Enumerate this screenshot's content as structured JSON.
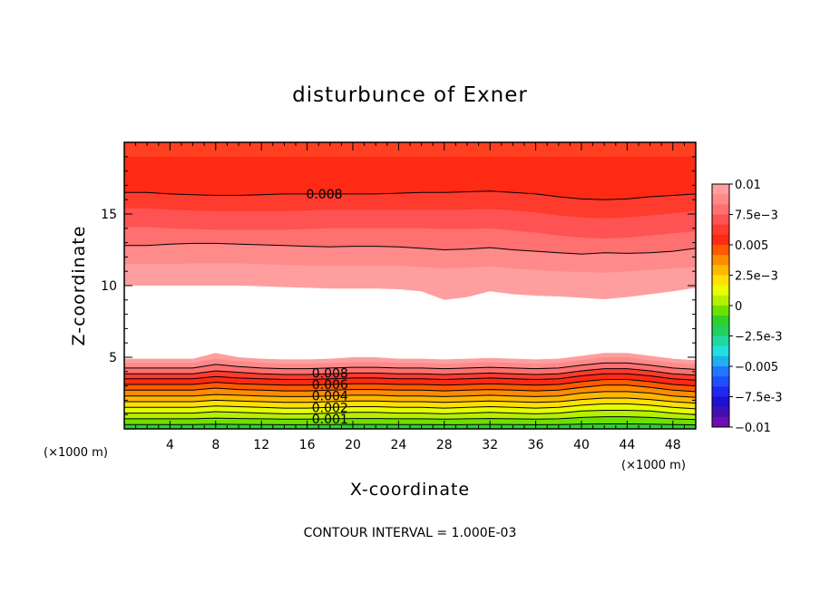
{
  "chart_data": {
    "type": "heatmap",
    "subtype": "filled-contour",
    "title": "disturbunce of Exner",
    "xlabel": "X-coordinate",
    "ylabel": "Z-coordinate",
    "x_unit": "(×1000 m)",
    "y_unit": "(×1000 m)",
    "xlim": [
      0,
      50
    ],
    "ylim": [
      0,
      20
    ],
    "x_ticks": [
      4,
      8,
      12,
      16,
      20,
      24,
      28,
      32,
      36,
      40,
      44,
      48
    ],
    "y_ticks": [
      5,
      10,
      15
    ],
    "footer": "CONTOUR INTERVAL = 1.000E-03",
    "contour_interval": 0.001,
    "colorbar": {
      "levels": [
        0.01,
        0.0075,
        0.005,
        0.0025,
        0,
        -0.0025,
        -0.005,
        -0.0075,
        -0.01
      ],
      "labels": [
        "0.01",
        "7.5e-3",
        "0.005",
        "2.5e-3",
        "0",
        "-2.5e-3",
        "-0.005",
        "-7.5e-3",
        "-0.01"
      ],
      "colors": [
        "#ff9e9e",
        "#ff8a8a",
        "#ff7070",
        "#ff5252",
        "#ff3b2e",
        "#ff2a14",
        "#ff5a00",
        "#ff8c00",
        "#ffb800",
        "#ffe000",
        "#e8ff00",
        "#b4f000",
        "#6ee000",
        "#2ed12e",
        "#20d060",
        "#20d8a0",
        "#20e0e0",
        "#20b0f0",
        "#1e78ff",
        "#1e50ff",
        "#1e28f0",
        "#2010d0",
        "#4010b0",
        "#6a10b0"
      ]
    },
    "layers_x": [
      0,
      2,
      4,
      6,
      8,
      10,
      12,
      14,
      16,
      18,
      20,
      22,
      24,
      26,
      28,
      30,
      32,
      34,
      36,
      38,
      40,
      42,
      44,
      46,
      48,
      50
    ],
    "layers": [
      {
        "color": "#ff4020",
        "z": [
          20,
          20,
          20,
          20,
          20,
          20,
          20,
          20,
          20,
          20,
          20,
          20,
          20,
          20,
          20,
          20,
          20,
          20,
          20,
          20,
          20,
          20,
          20,
          20,
          20,
          20
        ]
      },
      {
        "color": "#ff2a14",
        "z": [
          19.0,
          19.0,
          19.0,
          19.0,
          19.0,
          19.0,
          19.0,
          19.0,
          19.0,
          19.0,
          19.0,
          19.0,
          19.0,
          19.0,
          19.0,
          19.0,
          19.0,
          19.0,
          19.0,
          19.0,
          19.0,
          19.0,
          19.0,
          19.0,
          19.0,
          19.0
        ]
      },
      {
        "color": "#ff3b2e",
        "z": [
          16.5,
          16.5,
          16.4,
          16.35,
          16.3,
          16.3,
          16.35,
          16.4,
          16.4,
          16.4,
          16.4,
          16.4,
          16.45,
          16.5,
          16.5,
          16.55,
          16.6,
          16.5,
          16.4,
          16.2,
          16.05,
          16.0,
          16.05,
          16.2,
          16.3,
          16.4
        ]
      },
      {
        "color": "#ff5252",
        "z": [
          15.4,
          15.4,
          15.3,
          15.25,
          15.2,
          15.2,
          15.2,
          15.2,
          15.25,
          15.3,
          15.3,
          15.3,
          15.3,
          15.3,
          15.3,
          15.3,
          15.35,
          15.25,
          15.1,
          14.9,
          14.75,
          14.7,
          14.75,
          14.9,
          15.05,
          15.2
        ]
      },
      {
        "color": "#ff7070",
        "z": [
          14.1,
          14.1,
          14.0,
          13.95,
          13.9,
          13.9,
          13.9,
          13.9,
          13.95,
          14.0,
          14.0,
          14.0,
          14.0,
          14.0,
          13.95,
          13.95,
          14.0,
          13.85,
          13.7,
          13.5,
          13.35,
          13.3,
          13.35,
          13.5,
          13.65,
          13.8
        ]
      },
      {
        "color": "#ff8a8a",
        "z": [
          12.8,
          12.8,
          12.9,
          12.95,
          12.95,
          12.9,
          12.85,
          12.8,
          12.75,
          12.7,
          12.75,
          12.75,
          12.7,
          12.6,
          12.5,
          12.55,
          12.65,
          12.5,
          12.4,
          12.3,
          12.2,
          12.3,
          12.25,
          12.3,
          12.4,
          12.6
        ]
      },
      {
        "color": "#ff9e9e",
        "z": [
          11.5,
          11.5,
          11.5,
          11.55,
          11.55,
          11.55,
          11.5,
          11.45,
          11.4,
          11.4,
          11.4,
          11.4,
          11.4,
          11.3,
          11.2,
          11.25,
          11.35,
          11.2,
          11.1,
          11.0,
          10.95,
          10.9,
          11.0,
          11.1,
          11.2,
          11.3
        ]
      },
      {
        "color": "#ffffff",
        "z": [
          10.0,
          10.0,
          10.0,
          10.0,
          10.0,
          10.0,
          9.95,
          9.9,
          9.85,
          9.8,
          9.8,
          9.8,
          9.75,
          9.6,
          9.0,
          9.2,
          9.6,
          9.4,
          9.3,
          9.25,
          9.15,
          9.05,
          9.2,
          9.4,
          9.6,
          9.85
        ]
      },
      {
        "color": "#ff9e9e",
        "z": [
          4.9,
          4.9,
          4.9,
          4.9,
          5.3,
          5.0,
          4.9,
          4.85,
          4.85,
          4.9,
          5.0,
          5.0,
          4.9,
          4.9,
          4.85,
          4.9,
          4.95,
          4.9,
          4.85,
          4.9,
          5.1,
          5.3,
          5.3,
          5.1,
          4.9,
          4.8
        ]
      },
      {
        "color": "#ff8a8a",
        "z": [
          4.6,
          4.6,
          4.6,
          4.6,
          4.9,
          4.7,
          4.6,
          4.55,
          4.55,
          4.6,
          4.65,
          4.65,
          4.6,
          4.6,
          4.55,
          4.6,
          4.65,
          4.6,
          4.55,
          4.6,
          4.8,
          5.0,
          5.0,
          4.8,
          4.6,
          4.5
        ]
      },
      {
        "color": "#ff7070",
        "z": [
          4.25,
          4.25,
          4.25,
          4.25,
          4.5,
          4.35,
          4.25,
          4.2,
          4.2,
          4.25,
          4.3,
          4.3,
          4.25,
          4.25,
          4.2,
          4.25,
          4.3,
          4.25,
          4.2,
          4.25,
          4.45,
          4.6,
          4.6,
          4.45,
          4.25,
          4.15
        ]
      },
      {
        "color": "#ff3b2e",
        "z": [
          3.85,
          3.85,
          3.85,
          3.85,
          4.05,
          3.95,
          3.85,
          3.8,
          3.8,
          3.85,
          3.9,
          3.9,
          3.85,
          3.85,
          3.8,
          3.85,
          3.9,
          3.85,
          3.8,
          3.85,
          4.05,
          4.2,
          4.2,
          4.05,
          3.85,
          3.75
        ]
      },
      {
        "color": "#ff2a14",
        "z": [
          3.5,
          3.5,
          3.5,
          3.5,
          3.65,
          3.55,
          3.5,
          3.45,
          3.45,
          3.5,
          3.55,
          3.55,
          3.5,
          3.5,
          3.45,
          3.5,
          3.55,
          3.5,
          3.45,
          3.5,
          3.7,
          3.85,
          3.85,
          3.7,
          3.5,
          3.4
        ]
      },
      {
        "color": "#ff5a00",
        "z": [
          3.1,
          3.1,
          3.1,
          3.1,
          3.25,
          3.15,
          3.1,
          3.05,
          3.05,
          3.1,
          3.15,
          3.15,
          3.1,
          3.1,
          3.05,
          3.1,
          3.15,
          3.1,
          3.05,
          3.1,
          3.3,
          3.45,
          3.45,
          3.3,
          3.1,
          3.0
        ]
      },
      {
        "color": "#ff8c00",
        "z": [
          2.7,
          2.7,
          2.7,
          2.7,
          2.85,
          2.75,
          2.7,
          2.65,
          2.65,
          2.7,
          2.75,
          2.75,
          2.7,
          2.7,
          2.65,
          2.7,
          2.75,
          2.7,
          2.65,
          2.7,
          2.9,
          3.05,
          3.05,
          2.9,
          2.7,
          2.6
        ]
      },
      {
        "color": "#ffb800",
        "z": [
          2.3,
          2.3,
          2.3,
          2.3,
          2.4,
          2.35,
          2.3,
          2.25,
          2.25,
          2.3,
          2.35,
          2.35,
          2.3,
          2.3,
          2.25,
          2.3,
          2.35,
          2.3,
          2.25,
          2.3,
          2.5,
          2.6,
          2.6,
          2.5,
          2.3,
          2.2
        ]
      },
      {
        "color": "#ffe000",
        "z": [
          1.9,
          1.9,
          1.9,
          1.9,
          2.0,
          1.95,
          1.9,
          1.85,
          1.85,
          1.9,
          1.95,
          1.95,
          1.9,
          1.9,
          1.85,
          1.9,
          1.95,
          1.9,
          1.85,
          1.9,
          2.05,
          2.15,
          2.15,
          2.05,
          1.9,
          1.8
        ]
      },
      {
        "color": "#e8ff00",
        "z": [
          1.5,
          1.5,
          1.5,
          1.5,
          1.6,
          1.55,
          1.5,
          1.45,
          1.45,
          1.5,
          1.55,
          1.55,
          1.5,
          1.5,
          1.45,
          1.5,
          1.55,
          1.5,
          1.45,
          1.5,
          1.65,
          1.75,
          1.75,
          1.65,
          1.5,
          1.4
        ]
      },
      {
        "color": "#b4f000",
        "z": [
          1.1,
          1.1,
          1.1,
          1.1,
          1.2,
          1.15,
          1.1,
          1.05,
          1.05,
          1.1,
          1.15,
          1.15,
          1.1,
          1.1,
          1.05,
          1.1,
          1.15,
          1.1,
          1.05,
          1.1,
          1.25,
          1.3,
          1.3,
          1.25,
          1.1,
          1.0
        ]
      },
      {
        "color": "#6ee000",
        "z": [
          0.7,
          0.7,
          0.7,
          0.7,
          0.75,
          0.72,
          0.7,
          0.68,
          0.68,
          0.7,
          0.72,
          0.72,
          0.7,
          0.7,
          0.68,
          0.7,
          0.72,
          0.7,
          0.68,
          0.7,
          0.8,
          0.85,
          0.85,
          0.8,
          0.7,
          0.65
        ]
      },
      {
        "color": "#2ed12e",
        "z": [
          0.3,
          0.3,
          0.3,
          0.3,
          0.32,
          0.31,
          0.3,
          0.29,
          0.29,
          0.3,
          0.31,
          0.31,
          0.3,
          0.3,
          0.29,
          0.3,
          0.31,
          0.3,
          0.29,
          0.3,
          0.33,
          0.35,
          0.35,
          0.33,
          0.3,
          0.28
        ]
      }
    ],
    "contour_lines": [
      {
        "z": [
          16.5,
          16.5,
          16.4,
          16.35,
          16.3,
          16.3,
          16.35,
          16.4,
          16.4,
          16.4,
          16.4,
          16.4,
          16.45,
          16.5,
          16.5,
          16.55,
          16.6,
          16.5,
          16.4,
          16.2,
          16.05,
          16.0,
          16.05,
          16.2,
          16.3,
          16.4
        ]
      },
      {
        "z": [
          12.8,
          12.8,
          12.9,
          12.95,
          12.95,
          12.9,
          12.85,
          12.8,
          12.75,
          12.7,
          12.75,
          12.75,
          12.7,
          12.6,
          12.5,
          12.55,
          12.65,
          12.5,
          12.4,
          12.3,
          12.2,
          12.3,
          12.25,
          12.3,
          12.4,
          12.6
        ]
      },
      {
        "z": [
          4.25,
          4.25,
          4.25,
          4.25,
          4.5,
          4.35,
          4.25,
          4.2,
          4.2,
          4.25,
          4.3,
          4.3,
          4.25,
          4.25,
          4.2,
          4.25,
          4.3,
          4.25,
          4.2,
          4.25,
          4.45,
          4.6,
          4.6,
          4.45,
          4.25,
          4.15
        ]
      },
      {
        "z": [
          3.85,
          3.85,
          3.85,
          3.85,
          4.05,
          3.95,
          3.85,
          3.8,
          3.8,
          3.85,
          3.9,
          3.9,
          3.85,
          3.85,
          3.8,
          3.85,
          3.9,
          3.85,
          3.8,
          3.85,
          4.05,
          4.2,
          4.2,
          4.05,
          3.85,
          3.75
        ]
      },
      {
        "z": [
          3.5,
          3.5,
          3.5,
          3.5,
          3.65,
          3.55,
          3.5,
          3.45,
          3.45,
          3.5,
          3.55,
          3.55,
          3.5,
          3.5,
          3.45,
          3.5,
          3.55,
          3.5,
          3.45,
          3.5,
          3.7,
          3.85,
          3.85,
          3.7,
          3.5,
          3.4
        ]
      },
      {
        "z": [
          3.1,
          3.1,
          3.1,
          3.1,
          3.25,
          3.15,
          3.1,
          3.05,
          3.05,
          3.1,
          3.15,
          3.15,
          3.1,
          3.1,
          3.05,
          3.1,
          3.15,
          3.1,
          3.05,
          3.1,
          3.3,
          3.45,
          3.45,
          3.3,
          3.1,
          3.0
        ]
      },
      {
        "z": [
          2.7,
          2.7,
          2.7,
          2.7,
          2.85,
          2.75,
          2.7,
          2.65,
          2.65,
          2.7,
          2.75,
          2.75,
          2.7,
          2.7,
          2.65,
          2.7,
          2.75,
          2.7,
          2.65,
          2.7,
          2.9,
          3.05,
          3.05,
          2.9,
          2.7,
          2.6
        ]
      },
      {
        "z": [
          2.3,
          2.3,
          2.3,
          2.3,
          2.4,
          2.35,
          2.3,
          2.25,
          2.25,
          2.3,
          2.35,
          2.35,
          2.3,
          2.3,
          2.25,
          2.3,
          2.35,
          2.3,
          2.25,
          2.3,
          2.5,
          2.6,
          2.6,
          2.5,
          2.3,
          2.2
        ]
      },
      {
        "z": [
          1.9,
          1.9,
          1.9,
          1.9,
          2.0,
          1.95,
          1.9,
          1.85,
          1.85,
          1.9,
          1.95,
          1.95,
          1.9,
          1.9,
          1.85,
          1.9,
          1.95,
          1.9,
          1.85,
          1.9,
          2.05,
          2.15,
          2.15,
          2.05,
          1.9,
          1.8
        ]
      },
      {
        "z": [
          1.5,
          1.5,
          1.5,
          1.5,
          1.6,
          1.55,
          1.5,
          1.45,
          1.45,
          1.5,
          1.55,
          1.55,
          1.5,
          1.5,
          1.45,
          1.5,
          1.55,
          1.5,
          1.45,
          1.5,
          1.65,
          1.75,
          1.75,
          1.65,
          1.5,
          1.4
        ]
      },
      {
        "z": [
          1.1,
          1.1,
          1.1,
          1.1,
          1.2,
          1.15,
          1.1,
          1.05,
          1.05,
          1.1,
          1.15,
          1.15,
          1.1,
          1.1,
          1.05,
          1.1,
          1.15,
          1.1,
          1.05,
          1.1,
          1.25,
          1.3,
          1.3,
          1.25,
          1.1,
          1.0
        ]
      },
      {
        "z": [
          0.7,
          0.7,
          0.7,
          0.7,
          0.75,
          0.72,
          0.7,
          0.68,
          0.68,
          0.7,
          0.72,
          0.72,
          0.7,
          0.7,
          0.68,
          0.7,
          0.72,
          0.7,
          0.68,
          0.7,
          0.8,
          0.85,
          0.85,
          0.8,
          0.7,
          0.65
        ]
      },
      {
        "z": [
          0.3,
          0.3,
          0.3,
          0.3,
          0.32,
          0.31,
          0.3,
          0.29,
          0.29,
          0.3,
          0.31,
          0.31,
          0.3,
          0.3,
          0.29,
          0.3,
          0.31,
          0.3,
          0.29,
          0.3,
          0.33,
          0.35,
          0.35,
          0.33,
          0.3,
          0.28
        ]
      }
    ],
    "contour_labels": [
      {
        "text": "0.008",
        "x": 17.5,
        "z": 16.4
      },
      {
        "text": "0.008",
        "x": 18.0,
        "z": 3.9
      },
      {
        "text": "0.006",
        "x": 18.0,
        "z": 3.1
      },
      {
        "text": "0.004",
        "x": 18.0,
        "z": 2.3
      },
      {
        "text": "0.002",
        "x": 18.0,
        "z": 1.5
      },
      {
        "text": "0.001",
        "x": 18.0,
        "z": 0.7
      }
    ]
  }
}
